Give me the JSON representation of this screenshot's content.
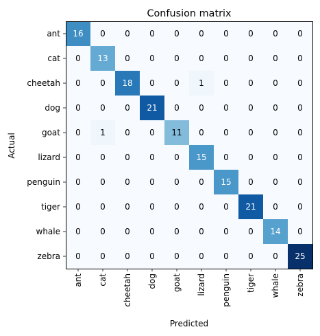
{
  "chart_data": {
    "type": "heatmap",
    "title": "Confusion matrix",
    "xlabel": "Predicted",
    "ylabel": "Actual",
    "x_categories": [
      "ant",
      "cat",
      "cheetah",
      "dog",
      "goat",
      "lizard",
      "penguin",
      "tiger",
      "whale",
      "zebra"
    ],
    "y_categories": [
      "ant",
      "cat",
      "cheetah",
      "dog",
      "goat",
      "lizard",
      "penguin",
      "tiger",
      "whale",
      "zebra"
    ],
    "values": [
      [
        16,
        0,
        0,
        0,
        0,
        0,
        0,
        0,
        0,
        0
      ],
      [
        0,
        13,
        0,
        0,
        0,
        0,
        0,
        0,
        0,
        0
      ],
      [
        0,
        0,
        18,
        0,
        0,
        1,
        0,
        0,
        0,
        0
      ],
      [
        0,
        0,
        0,
        21,
        0,
        0,
        0,
        0,
        0,
        0
      ],
      [
        0,
        1,
        0,
        0,
        11,
        0,
        0,
        0,
        0,
        0
      ],
      [
        0,
        0,
        0,
        0,
        0,
        15,
        0,
        0,
        0,
        0
      ],
      [
        0,
        0,
        0,
        0,
        0,
        0,
        15,
        0,
        0,
        0
      ],
      [
        0,
        0,
        0,
        0,
        0,
        0,
        0,
        21,
        0,
        0
      ],
      [
        0,
        0,
        0,
        0,
        0,
        0,
        0,
        0,
        14,
        0
      ],
      [
        0,
        0,
        0,
        0,
        0,
        0,
        0,
        0,
        0,
        25
      ]
    ],
    "colormap": "Blues",
    "color_range": [
      0,
      25
    ],
    "grid": false,
    "legend": "none"
  }
}
